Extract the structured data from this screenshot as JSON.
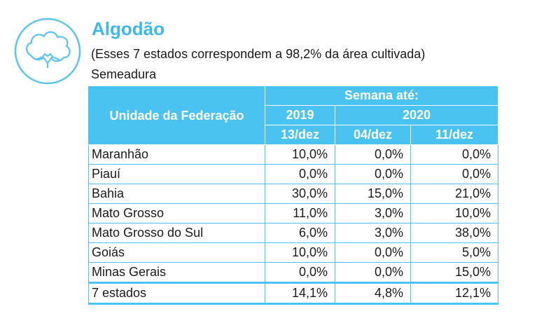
{
  "header": {
    "icon": "cotton-boll-icon",
    "title": "Algodão",
    "subtitle": "(Esses 7 estados correspondem a 98,2% da área cultivada)",
    "caption": "Semeadura"
  },
  "table": {
    "row_header": "Unidade da Federação",
    "group_header": "Semana até:",
    "years": [
      "2019",
      "2020"
    ],
    "weeks": [
      "13/dez",
      "04/dez",
      "11/dez"
    ],
    "rows": [
      {
        "state": "Maranhão",
        "values": [
          "10,0%",
          "0,0%",
          "0,0%"
        ]
      },
      {
        "state": "Piauí",
        "values": [
          "0,0%",
          "0,0%",
          "0,0%"
        ]
      },
      {
        "state": "Bahia",
        "values": [
          "30,0%",
          "15,0%",
          "21,0%"
        ]
      },
      {
        "state": "Mato Grosso",
        "values": [
          "11,0%",
          "3,0%",
          "10,0%"
        ]
      },
      {
        "state": "Mato Grosso do Sul",
        "values": [
          "6,0%",
          "3,0%",
          "38,0%"
        ]
      },
      {
        "state": "Goiás",
        "values": [
          "10,0%",
          "0,0%",
          "5,0%"
        ]
      },
      {
        "state": "Minas Gerais",
        "values": [
          "0,0%",
          "0,0%",
          "15,0%"
        ]
      }
    ],
    "total": {
      "state": "7 estados",
      "values": [
        "14,1%",
        "4,8%",
        "12,1%"
      ]
    }
  },
  "colors": {
    "accent": "#3fb8e8",
    "header_fill": "#4bc3f0"
  }
}
